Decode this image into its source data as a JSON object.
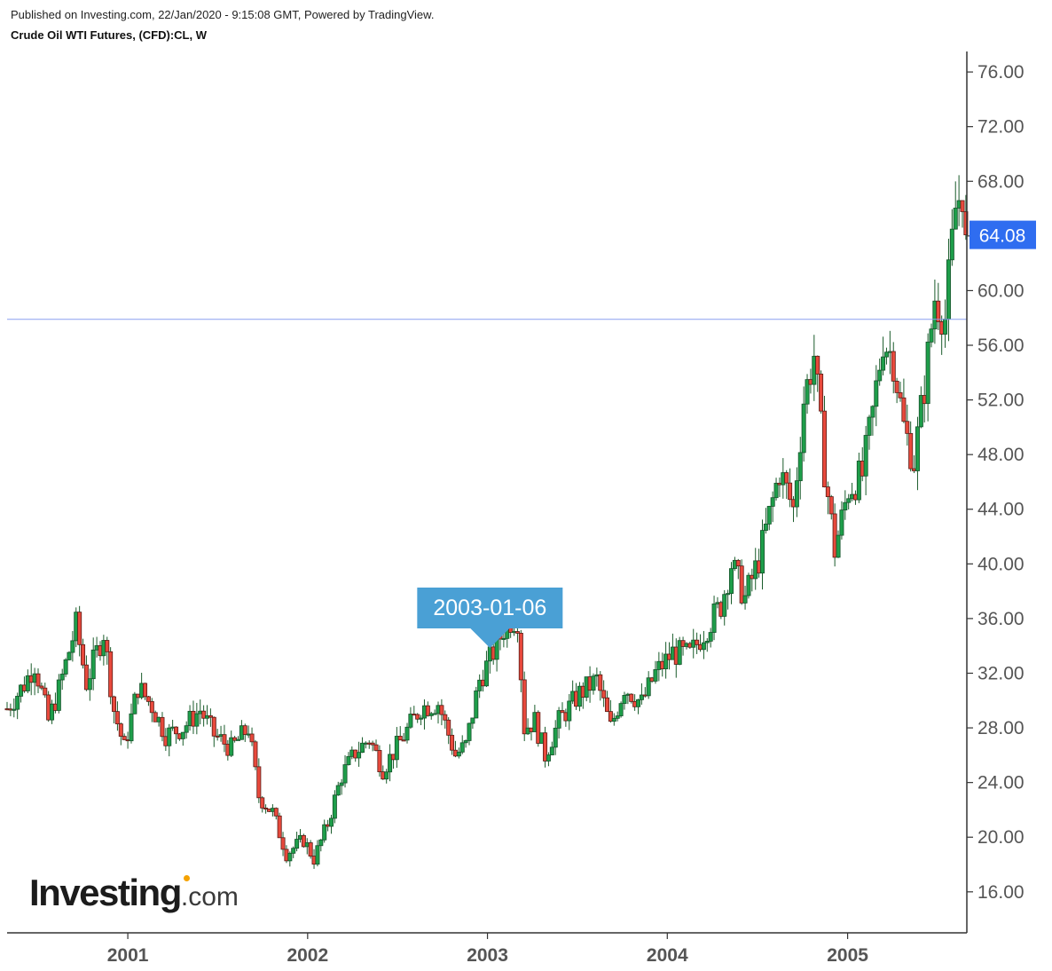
{
  "header": {
    "published": "Published on Investing.com, 22/Jan/2020 - 9:15:08 GMT, Powered by TradingView.",
    "title": "Crude Oil WTI Futures, (CFD):CL, W"
  },
  "logo": {
    "brand": "Investing",
    "suffix": ".com"
  },
  "colors": {
    "up": "#1e9e4a",
    "down": "#e8493c",
    "wick": "#1a5c2b",
    "price_tag_bg": "#2f6df0",
    "date_tag_bg": "#4aa0d5",
    "hline": "#8a9ff0"
  },
  "chart_data": {
    "type": "candlestick",
    "interval": "W",
    "y_axis": {
      "range": [
        13.0,
        77.5
      ],
      "ticks": [
        "16.00",
        "20.00",
        "24.00",
        "28.00",
        "32.00",
        "36.00",
        "40.00",
        "44.00",
        "48.00",
        "52.00",
        "56.00",
        "60.00",
        "64.00",
        "68.00",
        "72.00",
        "76.00"
      ]
    },
    "x_axis": {
      "range": [
        "2000-05-01",
        "2005-08-31"
      ],
      "ticks": [
        {
          "label": "2001",
          "date": "2001-01-01"
        },
        {
          "label": "2002",
          "date": "2002-01-01"
        },
        {
          "label": "2003",
          "date": "2003-01-01"
        },
        {
          "label": "2004",
          "date": "2004-01-01"
        },
        {
          "label": "2005",
          "date": "2005-01-01"
        }
      ]
    },
    "last_price_label": "64.08",
    "last_price": 64.08,
    "horizontal_line": 57.9,
    "crosshair_date_label": "2003-01-06",
    "crosshair_date": "2003-01-06",
    "grid": false,
    "anchors": [
      [
        "2000-05-01",
        29.4
      ],
      [
        "2000-06-05",
        31.2
      ],
      [
        "2000-06-26",
        32.7
      ],
      [
        "2000-07-24",
        28.5
      ],
      [
        "2000-08-14",
        30.8
      ],
      [
        "2000-09-18",
        35.5
      ],
      [
        "2000-10-09",
        31.3
      ],
      [
        "2000-11-13",
        35.0
      ],
      [
        "2000-12-04",
        29.3
      ],
      [
        "2000-12-25",
        26.5
      ],
      [
        "2001-01-22",
        31.0
      ],
      [
        "2001-02-19",
        29.6
      ],
      [
        "2001-03-19",
        27.5
      ],
      [
        "2001-04-23",
        28.0
      ],
      [
        "2001-05-28",
        29.3
      ],
      [
        "2001-06-25",
        27.5
      ],
      [
        "2001-07-30",
        26.5
      ],
      [
        "2001-09-03",
        28.0
      ],
      [
        "2001-09-24",
        23.0
      ],
      [
        "2001-10-22",
        21.8
      ],
      [
        "2001-11-19",
        18.8
      ],
      [
        "2001-12-24",
        19.8
      ],
      [
        "2002-01-14",
        18.4
      ],
      [
        "2002-02-11",
        21.0
      ],
      [
        "2002-03-11",
        24.5
      ],
      [
        "2002-04-08",
        26.2
      ],
      [
        "2002-05-06",
        27.2
      ],
      [
        "2002-06-03",
        25.0
      ],
      [
        "2002-07-08",
        27.0
      ],
      [
        "2002-08-19",
        29.5
      ],
      [
        "2002-09-23",
        29.8
      ],
      [
        "2002-10-28",
        26.0
      ],
      [
        "2002-11-18",
        26.7
      ],
      [
        "2002-12-16",
        31.5
      ],
      [
        "2003-01-06",
        33.0
      ],
      [
        "2003-02-10",
        35.8
      ],
      [
        "2003-03-03",
        36.0
      ],
      [
        "2003-03-17",
        28.0
      ],
      [
        "2003-04-07",
        28.5
      ],
      [
        "2003-04-28",
        26.0
      ],
      [
        "2003-05-26",
        28.5
      ],
      [
        "2003-07-07",
        30.5
      ],
      [
        "2003-08-11",
        31.5
      ],
      [
        "2003-09-08",
        28.0
      ],
      [
        "2003-10-06",
        31.0
      ],
      [
        "2003-11-10",
        29.8
      ],
      [
        "2003-12-08",
        32.0
      ],
      [
        "2004-01-12",
        33.5
      ],
      [
        "2004-02-16",
        33.3
      ],
      [
        "2004-03-15",
        35.0
      ],
      [
        "2004-04-19",
        37.0
      ],
      [
        "2004-05-10",
        40.0
      ],
      [
        "2004-06-07",
        37.5
      ],
      [
        "2004-07-05",
        40.3
      ],
      [
        "2004-08-16",
        46.8
      ],
      [
        "2004-09-13",
        44.0
      ],
      [
        "2004-10-04",
        52.0
      ],
      [
        "2004-10-25",
        55.3
      ],
      [
        "2004-11-15",
        47.0
      ],
      [
        "2004-12-06",
        41.0
      ],
      [
        "2005-01-03",
        45.5
      ],
      [
        "2005-01-31",
        46.5
      ],
      [
        "2005-02-21",
        51.0
      ],
      [
        "2005-03-14",
        56.5
      ],
      [
        "2005-04-04",
        55.0
      ],
      [
        "2005-04-25",
        50.0
      ],
      [
        "2005-05-16",
        47.5
      ],
      [
        "2005-06-06",
        53.0
      ],
      [
        "2005-06-27",
        59.5
      ],
      [
        "2005-07-18",
        58.0
      ],
      [
        "2005-08-08",
        66.0
      ],
      [
        "2005-08-22",
        67.5
      ],
      [
        "2005-08-29",
        64.08
      ]
    ]
  }
}
